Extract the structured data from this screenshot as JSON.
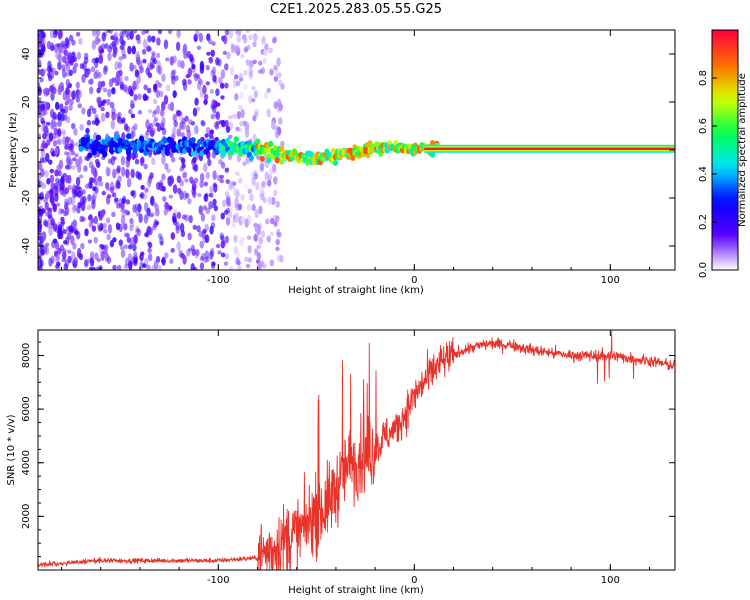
{
  "title": "C2E1.2025.283.05.55.G25",
  "chart_data": [
    {
      "type": "heatmap",
      "xlabel": "Height of straight line (km)",
      "ylabel": "Frequency (Hz)",
      "xlim": [
        -192,
        133
      ],
      "ylim": [
        -50,
        50
      ],
      "xticks": [
        -100,
        0,
        100
      ],
      "yticks": [
        -40,
        -20,
        0,
        20,
        40
      ],
      "ridge": {
        "x": [
          -165,
          -140,
          -120,
          -100,
          -90,
          -80,
          -72,
          -66,
          -60,
          -55,
          -50,
          -45,
          -40,
          -35,
          -30,
          -25,
          -20,
          -15,
          -10,
          -5,
          0,
          10,
          133
        ],
        "freq": [
          2,
          2,
          1.5,
          1.5,
          1,
          0,
          -1,
          -2,
          -3,
          -3.5,
          -3.5,
          -3,
          -2.5,
          -1.5,
          -1,
          0,
          0.5,
          1,
          1,
          0.5,
          0.5,
          0.5,
          0.5
        ]
      },
      "colorbar": {
        "label": "Normalized spectral amplitude",
        "ticks": [
          0.0,
          0.2,
          0.4,
          0.6,
          0.8
        ],
        "tick_labels": [
          "0.0",
          "0.2",
          "0.4",
          "0.6",
          "0.8"
        ],
        "range": [
          0,
          1
        ],
        "colormap": [
          "#ffffff",
          "#5b00ff",
          "#0000ff",
          "#00e5ff",
          "#00ff4c",
          "#d9ff00",
          "#ff6a00",
          "#ff0040"
        ]
      }
    },
    {
      "type": "line",
      "xlabel": "Height of straight line (km)",
      "ylabel": "SNR (10 * v/v)",
      "xlim": [
        -192,
        133
      ],
      "ylim": [
        0,
        8950
      ],
      "xticks": [
        -100,
        0,
        100
      ],
      "yticks": [
        2000,
        4000,
        6000,
        8000
      ],
      "color": "#e8322a",
      "series": [
        {
          "name": "SNR",
          "x": [
            -192,
            -180,
            -160,
            -140,
            -120,
            -100,
            -90,
            -80,
            -72,
            -65,
            -58,
            -52,
            -46,
            -40,
            -35,
            -30,
            -25,
            -20,
            -15,
            -10,
            -5,
            0,
            5,
            10,
            15,
            20,
            25,
            30,
            35,
            40,
            45,
            50,
            60,
            70,
            80,
            90,
            100,
            110,
            120,
            133
          ],
          "values": [
            200,
            250,
            350,
            350,
            350,
            350,
            400,
            450,
            800,
            1200,
            1400,
            2000,
            2300,
            3000,
            3800,
            4100,
            4200,
            4500,
            5000,
            5200,
            5800,
            6500,
            7000,
            7500,
            7800,
            8000,
            8200,
            8300,
            8400,
            8450,
            8400,
            8400,
            8200,
            8100,
            8000,
            8000,
            8000,
            7900,
            7800,
            7600
          ]
        }
      ]
    }
  ]
}
